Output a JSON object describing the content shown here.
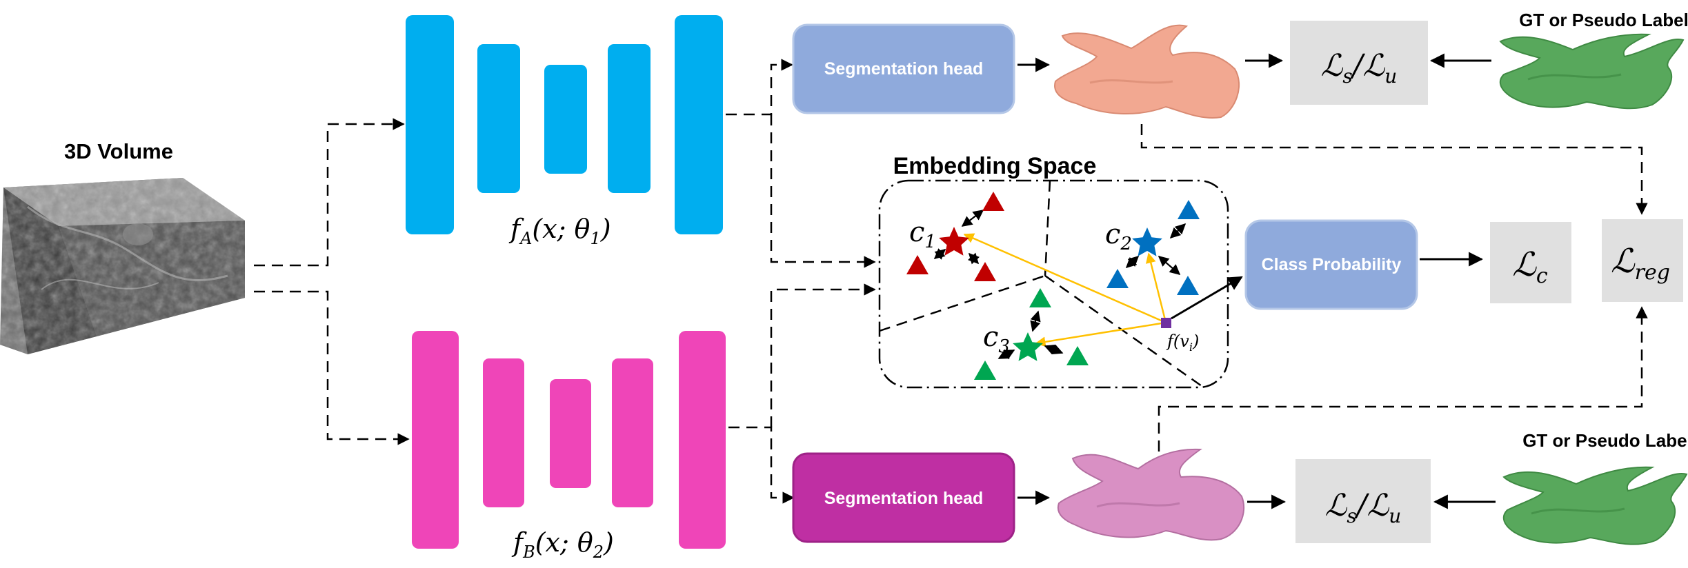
{
  "input": {
    "title": "3D Volume"
  },
  "networks": {
    "a": {
      "label": "f_A(x; θ_1)",
      "label_main": "f",
      "label_sub": "A",
      "label_args": "(x; θ",
      "label_arg_sub": "1",
      "label_close": ")",
      "color": "#00aeef"
    },
    "b": {
      "label": "f_B(x; θ_2)",
      "label_main": "f",
      "label_sub": "B",
      "label_args": "(x; θ",
      "label_arg_sub": "2",
      "label_close": ")",
      "color": "#ef45b8"
    }
  },
  "heads": {
    "top": {
      "label": "Segmentation head",
      "color": "#8faadc"
    },
    "bottom": {
      "label": "Segmentation head",
      "color": "#bf2fa3"
    }
  },
  "embedding": {
    "title": "Embedding Space",
    "centroids": [
      {
        "label": "c",
        "sub": "1",
        "color": "#c00000"
      },
      {
        "label": "c",
        "sub": "2",
        "color": "#0070c0"
      },
      {
        "label": "c",
        "sub": "3",
        "color": "#00a651"
      }
    ],
    "feature_label": "f(v",
    "feature_sub": "i",
    "feature_close": ")",
    "feature_color": "#7030a0",
    "link_color": "#ffc000"
  },
  "class_probability": {
    "label": "Class Probability",
    "color": "#8faadc"
  },
  "losses": {
    "seg_top": {
      "main": "ℒ",
      "sub1": "s",
      "sep": "/ℒ",
      "sub2": "u"
    },
    "seg_bottom": {
      "main": "ℒ",
      "sub1": "s",
      "sep": "/ℒ",
      "sub2": "u"
    },
    "class": {
      "main": "ℒ",
      "sub": "c"
    },
    "reg": {
      "main": "ℒ",
      "sub": "reg"
    }
  },
  "labels": {
    "gt_top": "GT or Pseudo Label",
    "gt_bottom": "GT or Pseudo Label"
  },
  "colors": {
    "prediction_top": "#f2a891",
    "prediction_bottom": "#d990c4",
    "gt_shape": "#58a85c",
    "loss_box": "#e0e0e0"
  }
}
